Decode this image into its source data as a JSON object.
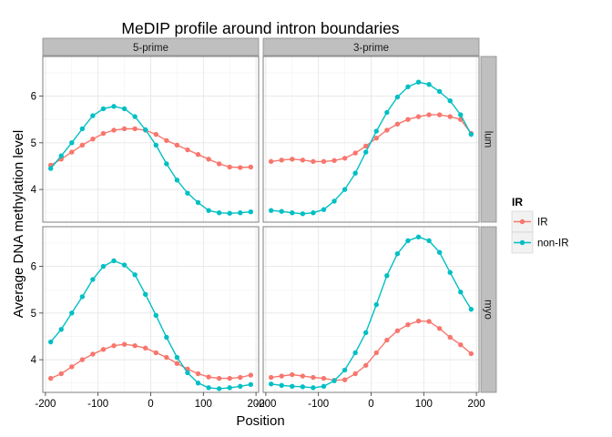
{
  "chart_data": {
    "type": "line",
    "title": "MeDIP profile around intron boundaries",
    "xlabel": "Position",
    "ylabel": "Average DNA methylation level",
    "xlim": [
      -205,
      205
    ],
    "ylim": [
      3.3,
      6.85
    ],
    "x_ticks": [
      -200,
      -100,
      0,
      100,
      200
    ],
    "x_tick_labels": [
      "-200",
      "-100",
      "0",
      "100",
      "200"
    ],
    "y_ticks": [
      4,
      5,
      6
    ],
    "y_tick_labels": [
      "4",
      "5",
      "6"
    ],
    "columns": [
      "5-prime",
      "3-prime"
    ],
    "rows": [
      "lum",
      "myo"
    ],
    "grid": true,
    "legend": {
      "title": "IR",
      "position": "right",
      "entries": [
        "IR",
        "non-IR"
      ]
    },
    "series_colors": {
      "IR": "#F8766D",
      "non-IR": "#00BFC4"
    },
    "x": [
      -190,
      -170,
      -150,
      -130,
      -110,
      -90,
      -70,
      -50,
      -30,
      -10,
      10,
      30,
      50,
      70,
      90,
      110,
      130,
      150,
      170,
      190
    ],
    "panels": [
      {
        "column": "5-prime",
        "row": "lum",
        "series": [
          {
            "name": "IR",
            "values": [
              4.52,
              4.65,
              4.8,
              4.95,
              5.08,
              5.2,
              5.27,
              5.3,
              5.3,
              5.27,
              5.18,
              5.05,
              4.95,
              4.85,
              4.75,
              4.65,
              4.55,
              4.48,
              4.47,
              4.48
            ]
          },
          {
            "name": "non-IR",
            "values": [
              4.45,
              4.72,
              5.0,
              5.3,
              5.58,
              5.73,
              5.78,
              5.73,
              5.56,
              5.28,
              4.95,
              4.55,
              4.2,
              3.92,
              3.72,
              3.55,
              3.5,
              3.49,
              3.5,
              3.52
            ]
          }
        ]
      },
      {
        "column": "3-prime",
        "row": "lum",
        "series": [
          {
            "name": "IR",
            "values": [
              4.6,
              4.63,
              4.65,
              4.63,
              4.6,
              4.6,
              4.62,
              4.67,
              4.78,
              4.93,
              5.1,
              5.27,
              5.4,
              5.5,
              5.56,
              5.6,
              5.6,
              5.56,
              5.5,
              5.2
            ]
          },
          {
            "name": "non-IR",
            "values": [
              3.55,
              3.53,
              3.5,
              3.48,
              3.5,
              3.57,
              3.75,
              4.0,
              4.35,
              4.8,
              5.25,
              5.65,
              5.98,
              6.2,
              6.3,
              6.25,
              6.1,
              5.9,
              5.6,
              5.18
            ]
          }
        ]
      },
      {
        "column": "5-prime",
        "row": "myo",
        "series": [
          {
            "name": "IR",
            "values": [
              3.6,
              3.7,
              3.85,
              4.0,
              4.12,
              4.22,
              4.3,
              4.33,
              4.3,
              4.25,
              4.15,
              4.05,
              3.92,
              3.8,
              3.7,
              3.63,
              3.6,
              3.6,
              3.62,
              3.67
            ]
          },
          {
            "name": "non-IR",
            "values": [
              4.38,
              4.65,
              5.0,
              5.35,
              5.72,
              6.0,
              6.12,
              6.03,
              5.82,
              5.4,
              4.95,
              4.48,
              4.05,
              3.72,
              3.5,
              3.4,
              3.38,
              3.4,
              3.43,
              3.47
            ]
          }
        ]
      },
      {
        "column": "3-prime",
        "row": "myo",
        "series": [
          {
            "name": "IR",
            "values": [
              3.62,
              3.65,
              3.68,
              3.65,
              3.62,
              3.6,
              3.56,
              3.57,
              3.7,
              3.88,
              4.15,
              4.42,
              4.62,
              4.75,
              4.83,
              4.82,
              4.67,
              4.48,
              4.32,
              4.13
            ]
          },
          {
            "name": "non-IR",
            "values": [
              3.48,
              3.45,
              3.43,
              3.42,
              3.4,
              3.43,
              3.55,
              3.78,
              4.15,
              4.58,
              5.18,
              5.8,
              6.27,
              6.55,
              6.63,
              6.55,
              6.3,
              5.87,
              5.45,
              5.08
            ]
          }
        ]
      }
    ]
  }
}
